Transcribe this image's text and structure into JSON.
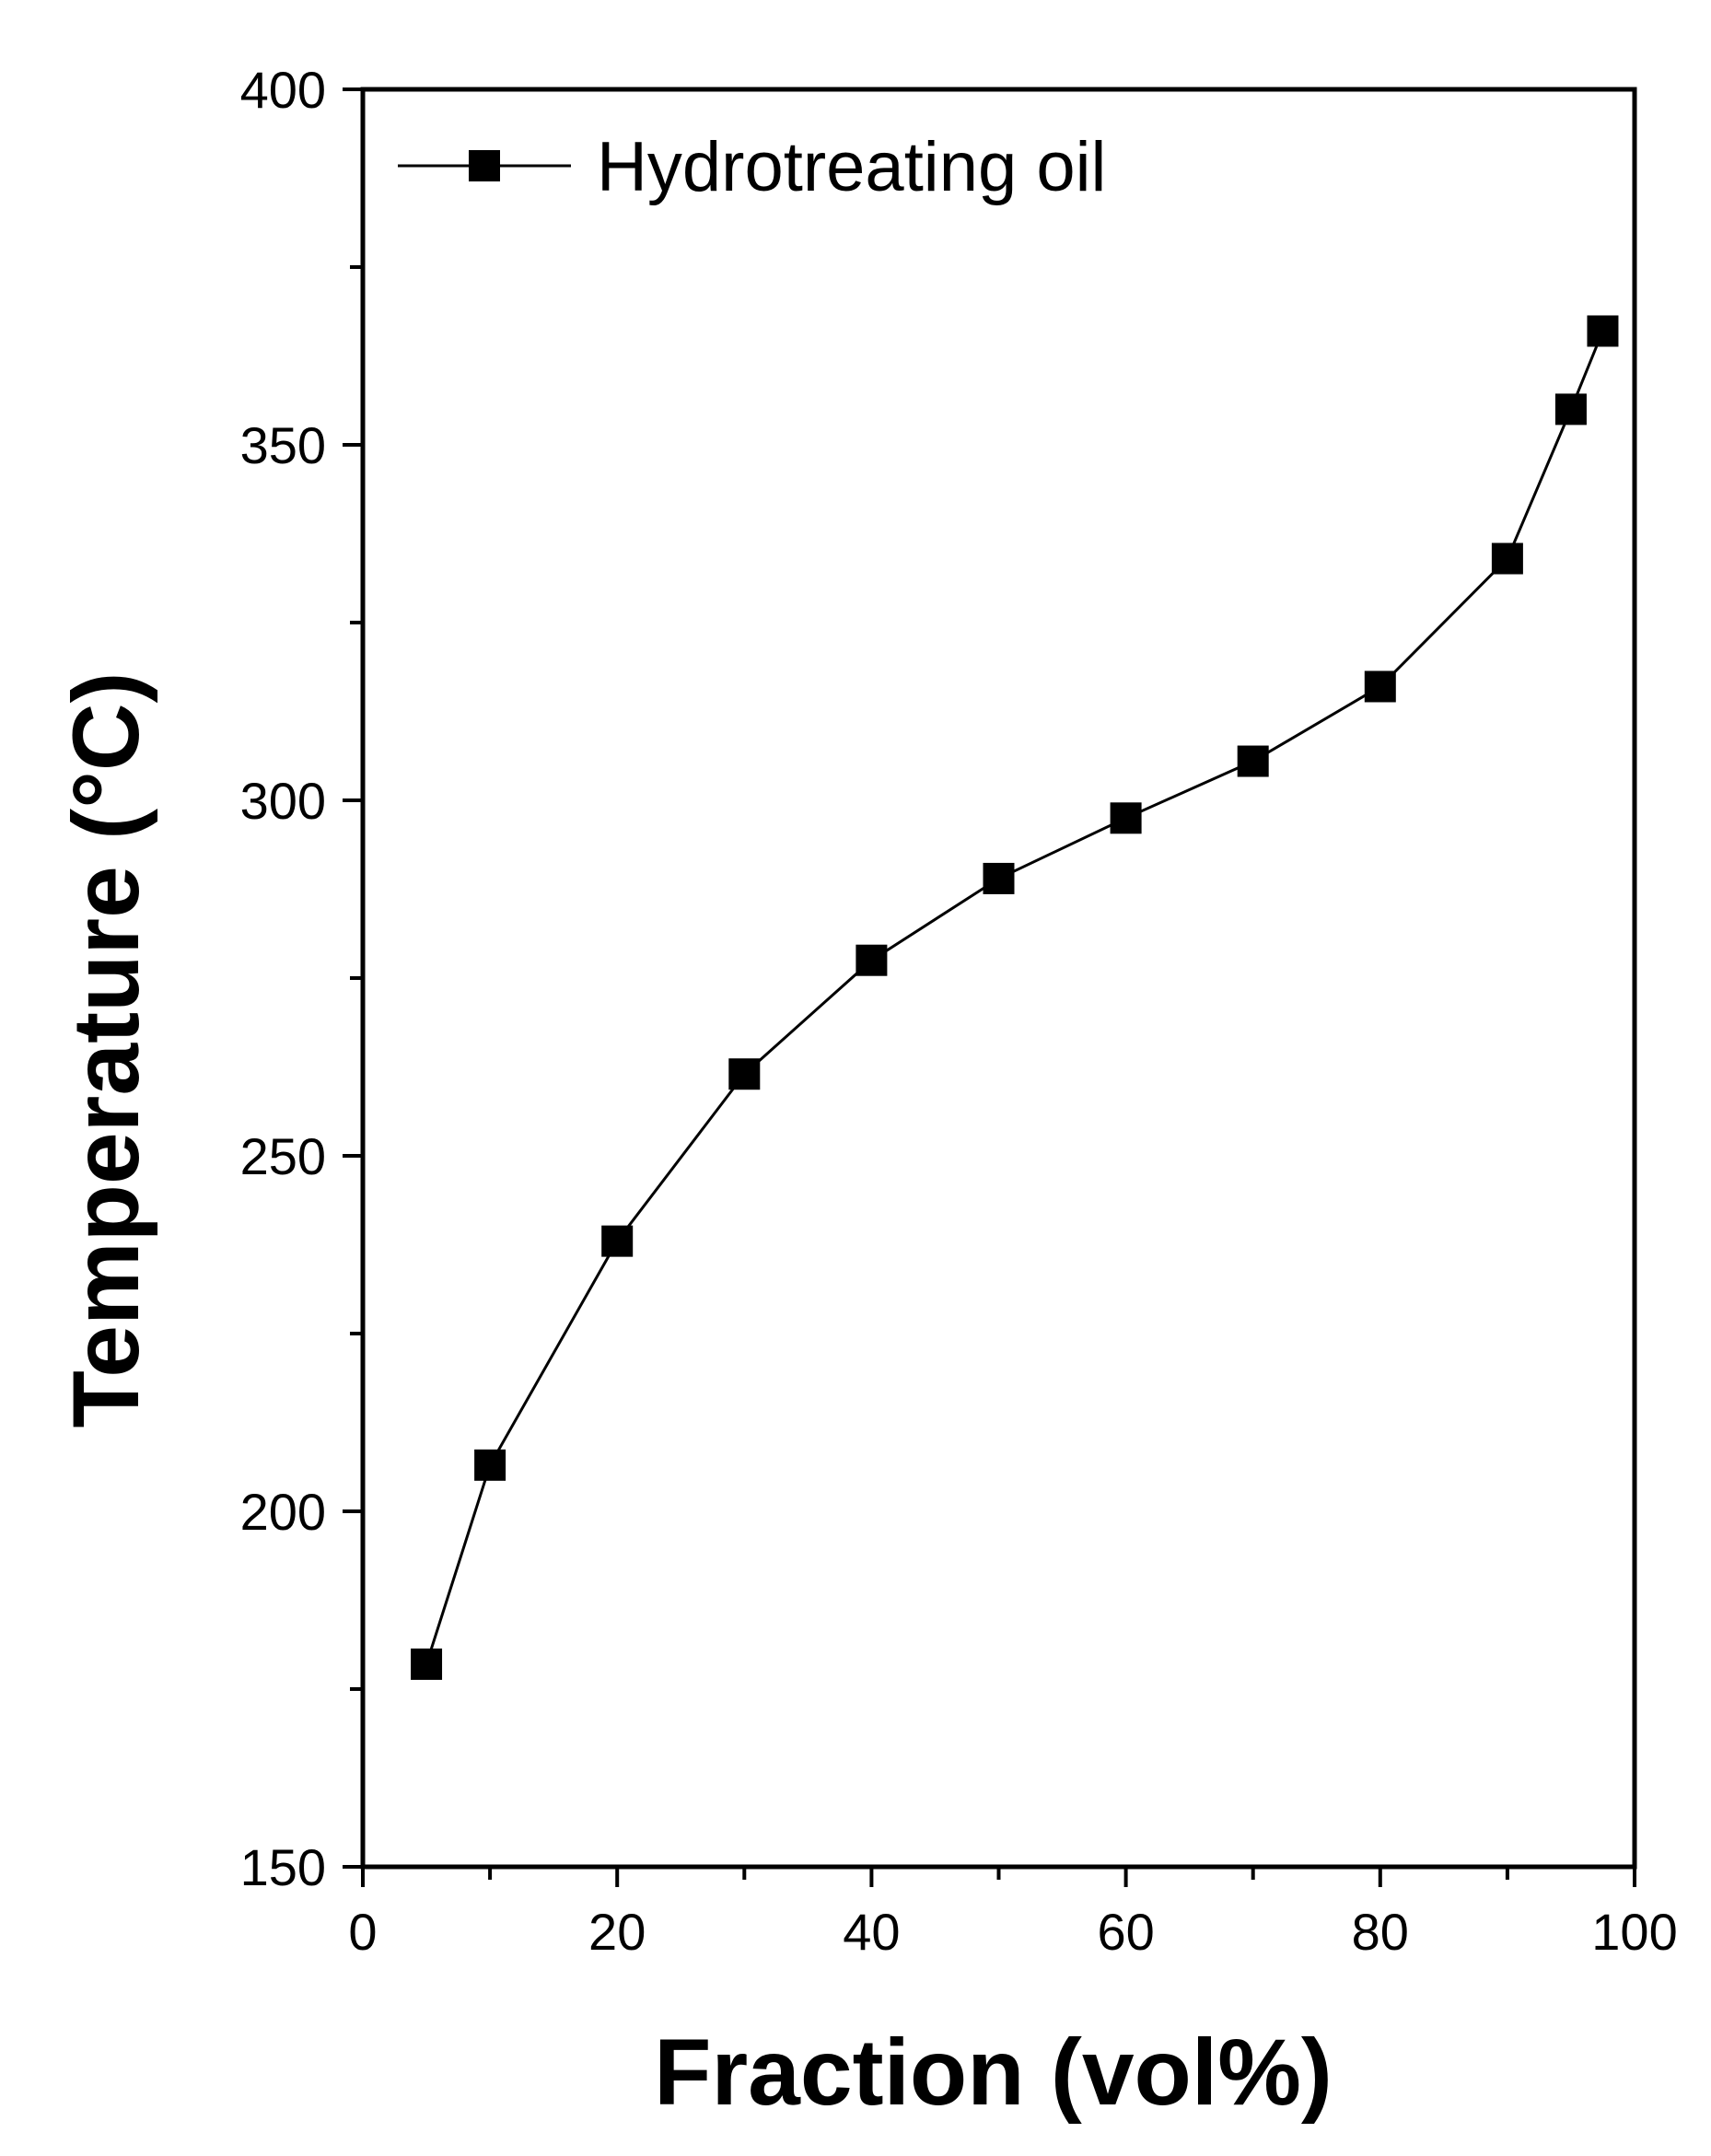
{
  "chart_data": {
    "type": "line",
    "xlabel": "Fraction (vol%)",
    "ylabel": "Temperature (°C)",
    "xlim": [
      0,
      100
    ],
    "ylim": [
      150,
      400
    ],
    "xticks": [
      0,
      20,
      40,
      60,
      80,
      100
    ],
    "yticks": [
      150,
      200,
      250,
      300,
      350,
      400
    ],
    "x_minor_step": 10,
    "y_minor_step": 25,
    "grid": false,
    "legend": {
      "position": "top-left"
    },
    "series": [
      {
        "name": "Hydrotreating oil",
        "marker": "square",
        "color": "#000000",
        "x": [
          5,
          10,
          20,
          30,
          40,
          50,
          60,
          70,
          80,
          90,
          95,
          97.5
        ],
        "y": [
          178.5,
          206.5,
          238,
          261.5,
          277.5,
          289,
          297.5,
          305.5,
          316,
          334,
          355,
          366
        ]
      }
    ]
  }
}
